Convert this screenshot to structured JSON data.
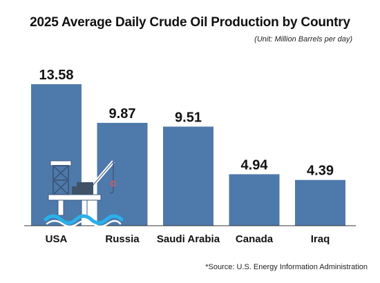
{
  "chart_data": {
    "type": "bar",
    "title": "2025 Average Daily Crude Oil Production by Country",
    "unit_note": "(Unit: Million Barrels per day)",
    "categories": [
      "USA",
      "Russia",
      "Saudi Arabia",
      "Canada",
      "Iraq"
    ],
    "values": [
      13.58,
      9.87,
      9.51,
      4.94,
      4.39
    ],
    "value_labels": [
      "13.58",
      "9.87",
      "9.51",
      "4.94",
      "4.39"
    ],
    "source_note": "*Source: U.S. Energy Information Administration",
    "bar_color": "#4e79ab",
    "ylim": [
      0,
      13.58
    ],
    "grid": false,
    "legend": "none",
    "icon": "oil-rig-icon"
  }
}
